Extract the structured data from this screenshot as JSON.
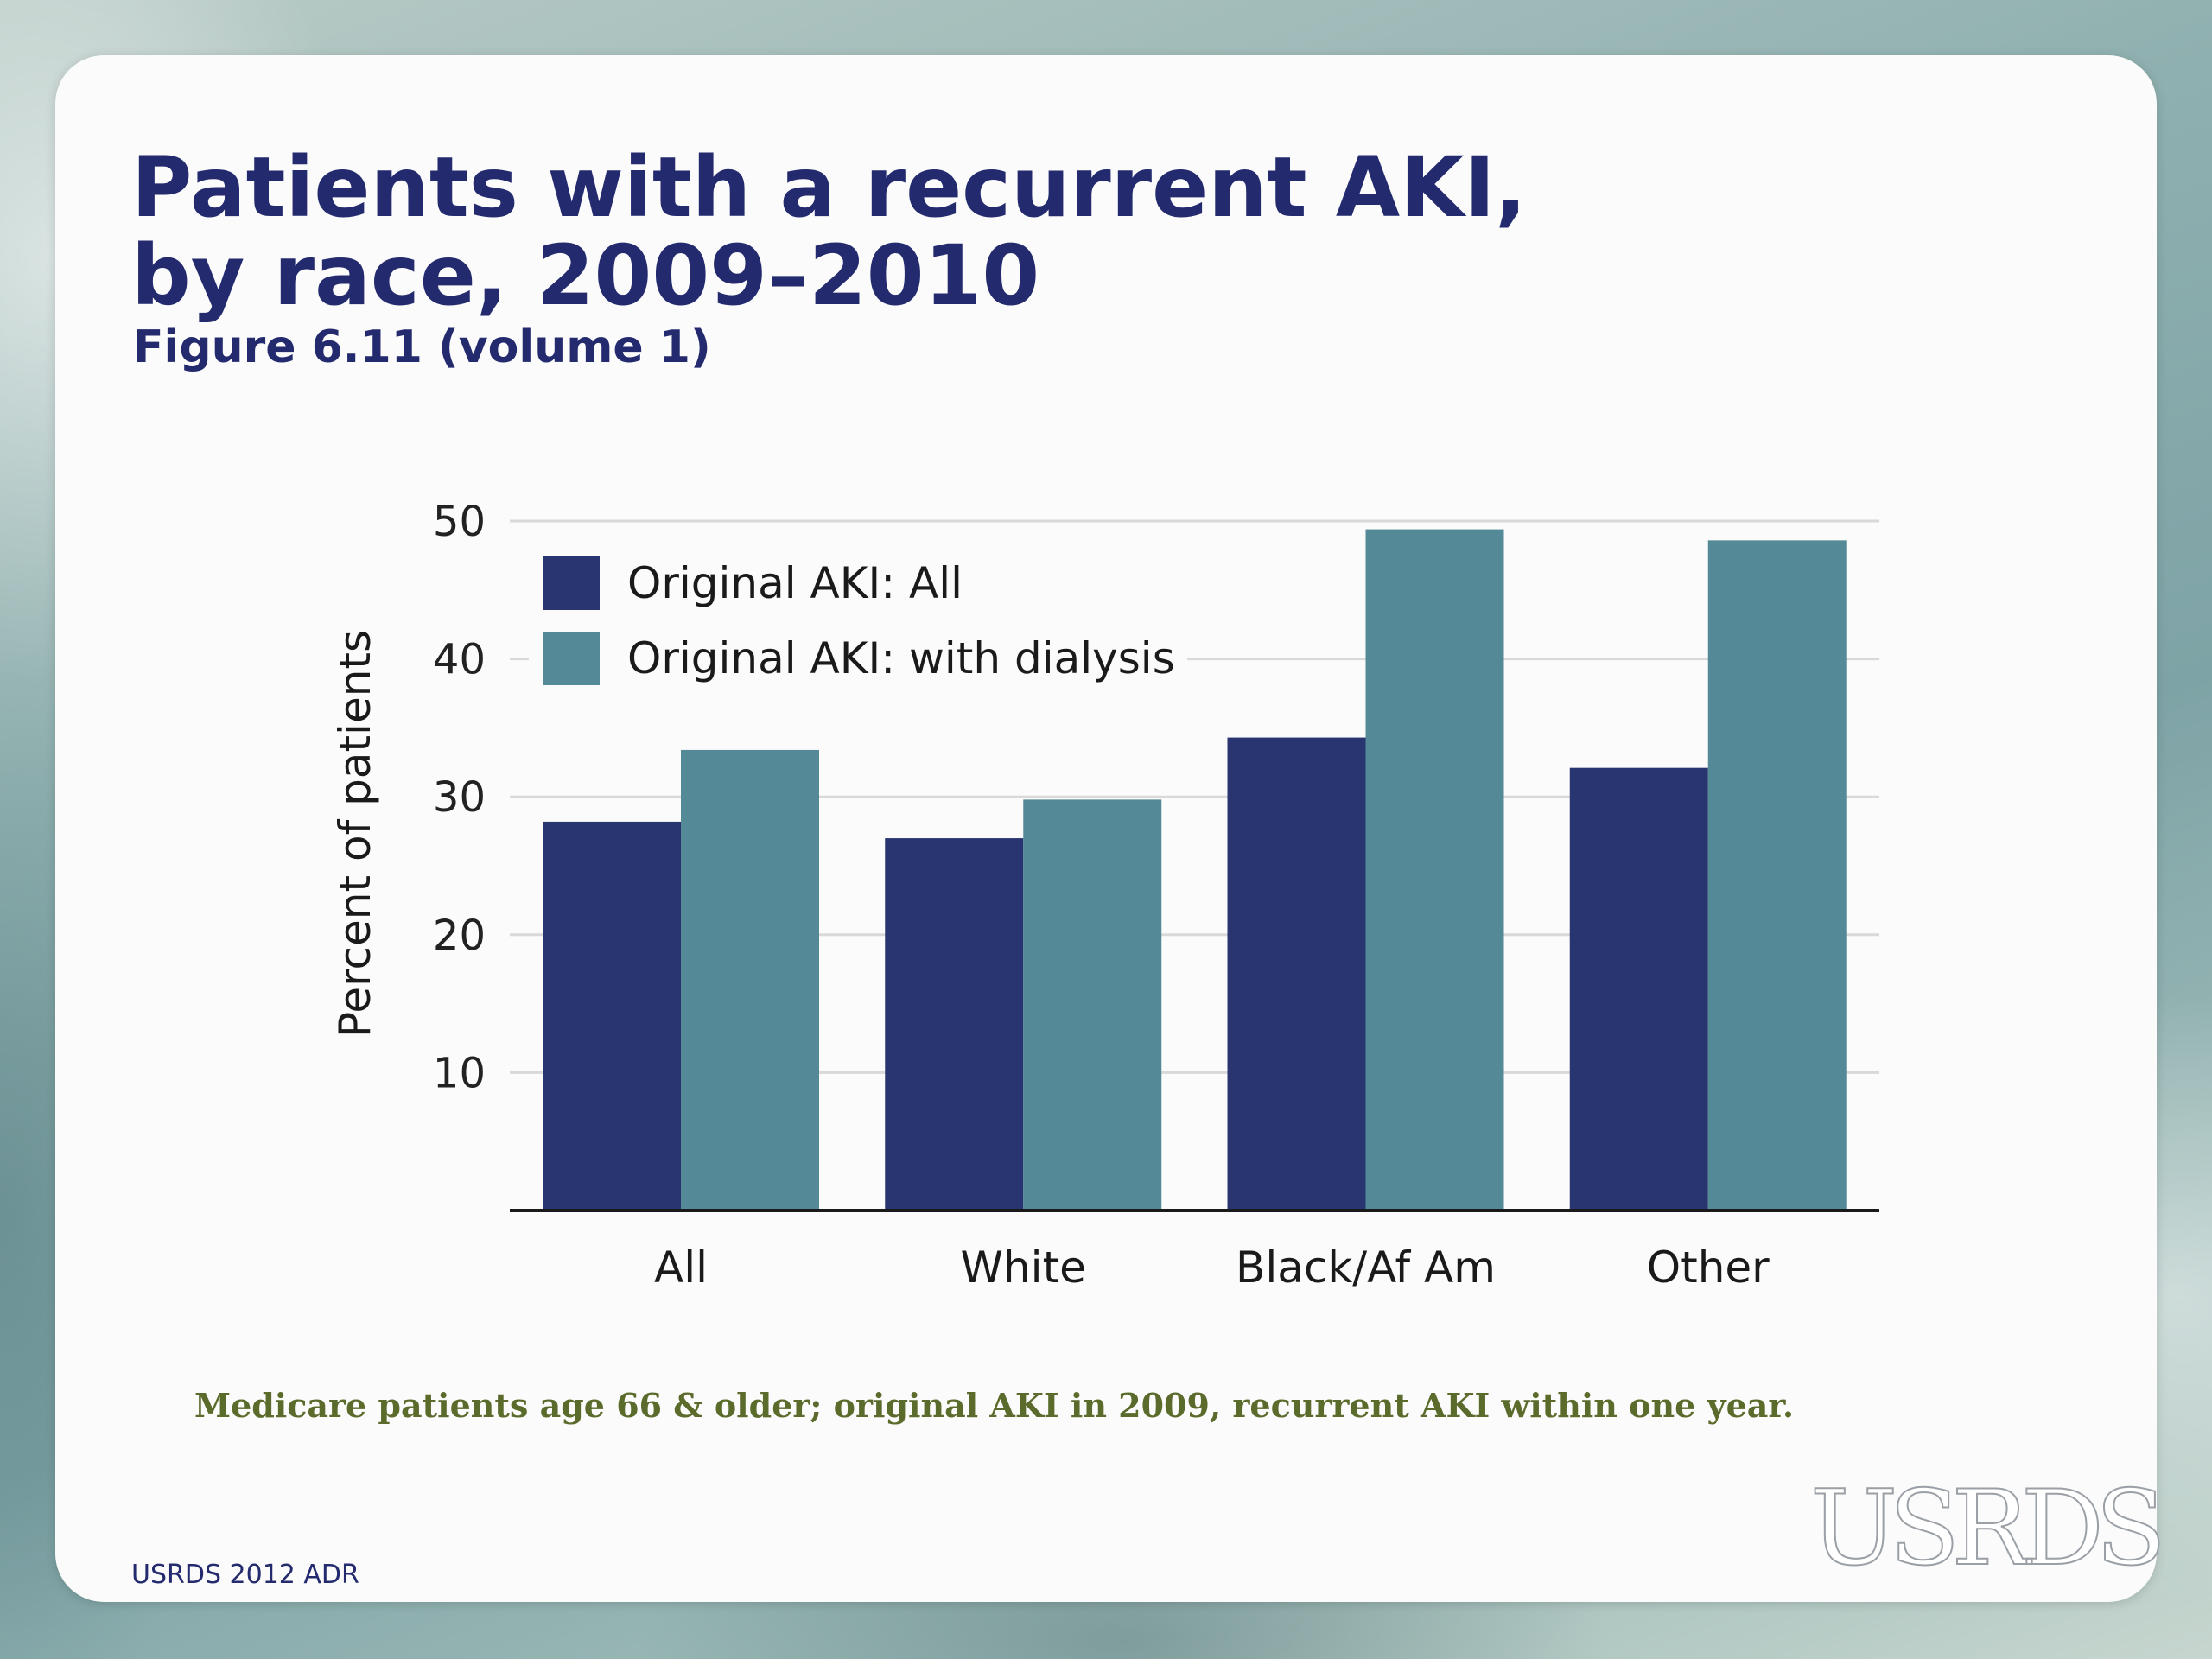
{
  "slide": {
    "title_line1": "Patients with a recurrent AKI,",
    "title_line2": "by race, 2009–2010",
    "subtitle": "Figure 6.11 (volume 1)",
    "note": "Medicare patients age 66 & older; original AKI in 2009, recurrent AKI within one year.",
    "footer": "USRDS 2012 ADR",
    "logo": "USRDS"
  },
  "chart_data": {
    "type": "bar",
    "title": "",
    "xlabel": "",
    "ylabel": "Percent of patients",
    "ylim": [
      0,
      50
    ],
    "yticks": [
      10,
      20,
      30,
      40,
      50
    ],
    "grid": true,
    "legend_position": "top-left",
    "categories": [
      "All",
      "White",
      "Black/Af Am",
      "Other"
    ],
    "series": [
      {
        "name": "Original AKI: All",
        "color": "#283570",
        "values": [
          28.2,
          27.0,
          34.3,
          32.1
        ]
      },
      {
        "name": "Original AKI: with dialysis",
        "color": "#548a97",
        "values": [
          33.4,
          29.8,
          49.4,
          48.6
        ]
      }
    ]
  }
}
